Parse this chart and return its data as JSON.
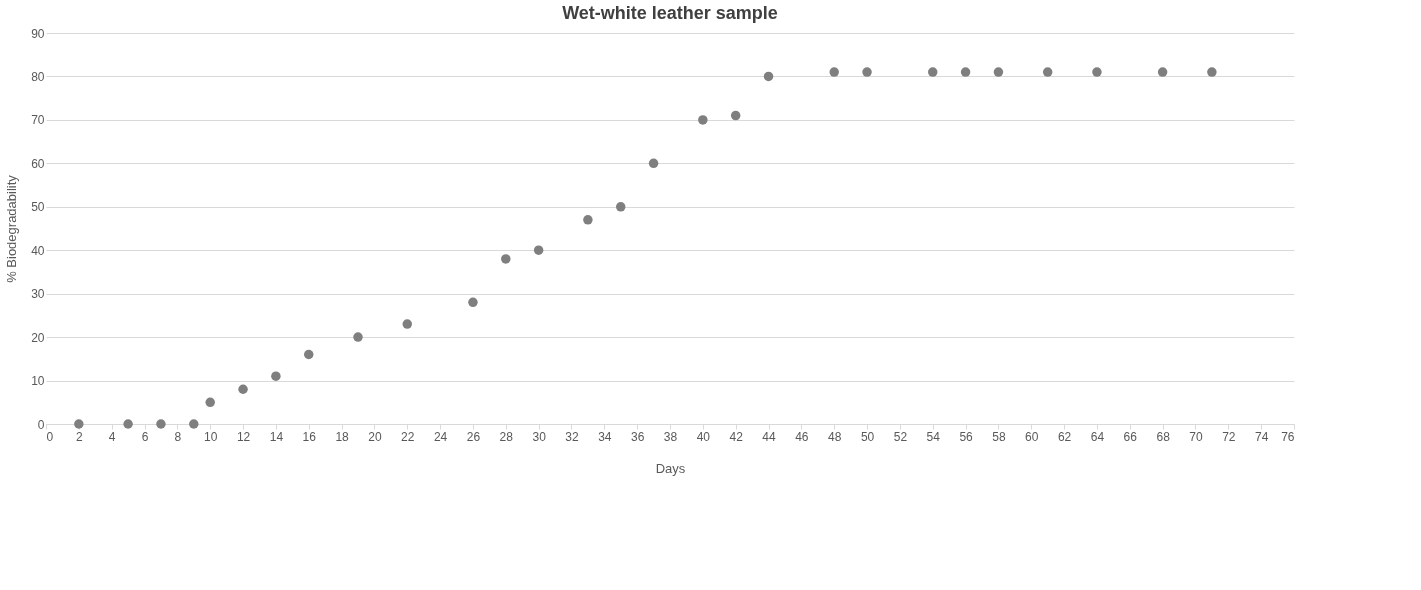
{
  "chart_data": {
    "type": "scatter",
    "title": "Wet-white leather sample",
    "xlabel": "Days",
    "ylabel": "% Biodegradability",
    "x": [
      2,
      5,
      7,
      9,
      10,
      12,
      14,
      16,
      19,
      22,
      26,
      28,
      30,
      33,
      35,
      37,
      40,
      42,
      44,
      48,
      50,
      54,
      56,
      58,
      61,
      64,
      68,
      71
    ],
    "series": [
      {
        "color": "#7f7f7f",
        "values": [
          0,
          0,
          0,
          0,
          5,
          8,
          11,
          16,
          20,
          23,
          28,
          38,
          40,
          47,
          50,
          60,
          70,
          71,
          80,
          81,
          81,
          81,
          81,
          81,
          81,
          81,
          81,
          81
        ]
      }
    ],
    "xlim": [
      0,
      76
    ],
    "xticks": [
      0,
      2,
      4,
      6,
      8,
      10,
      12,
      14,
      16,
      18,
      20,
      22,
      24,
      26,
      28,
      30,
      32,
      34,
      36,
      38,
      40,
      42,
      44,
      46,
      48,
      50,
      52,
      54,
      56,
      58,
      60,
      62,
      64,
      66,
      68,
      70,
      72,
      74,
      76
    ],
    "ylim": [
      0,
      90
    ],
    "yticks": [
      0,
      10,
      20,
      30,
      40,
      50,
      60,
      70,
      80,
      90
    ],
    "grid": "y",
    "marker": "circle"
  }
}
